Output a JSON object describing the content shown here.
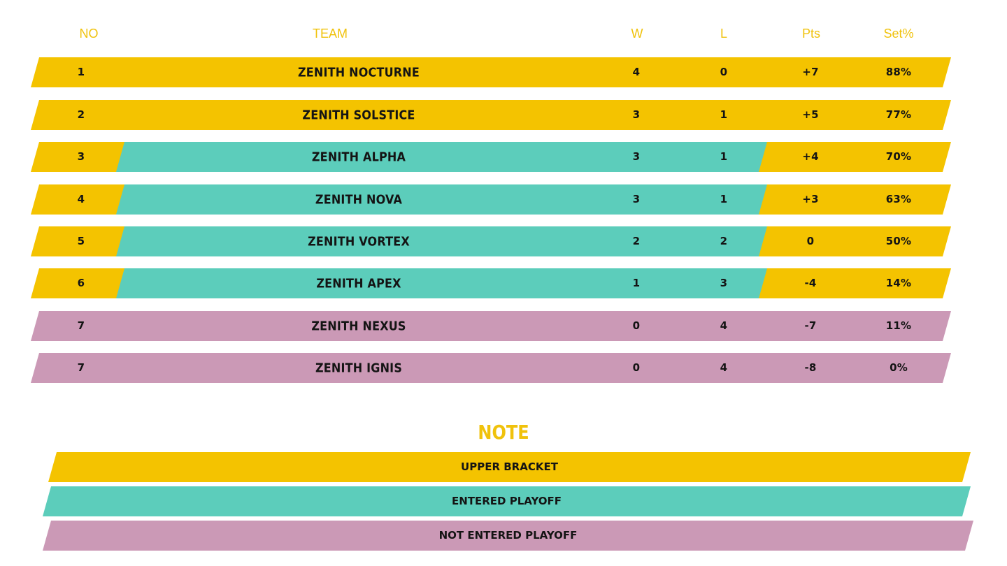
{
  "columns": {
    "no": "NO",
    "team": "TEAM",
    "w": "W",
    "l": "L",
    "pts": "Pts",
    "set_pct": "Set%"
  },
  "colors": {
    "upper_bracket": "#f4c300",
    "entered_playoff": "#5ccdbb",
    "not_entered_playoff": "#cb99b6",
    "header_text": "#f0c20c"
  },
  "standings": [
    {
      "no": "1",
      "team": "ZENITH NOCTURNE",
      "w": "4",
      "l": "0",
      "pts": "+7",
      "set_pct": "88%",
      "status": "upper_bracket"
    },
    {
      "no": "2",
      "team": "ZENITH SOLSTICE",
      "w": "3",
      "l": "1",
      "pts": "+5",
      "set_pct": "77%",
      "status": "upper_bracket"
    },
    {
      "no": "3",
      "team": "ZENITH ALPHA",
      "w": "3",
      "l": "1",
      "pts": "+4",
      "set_pct": "70%",
      "status": "entered_playoff"
    },
    {
      "no": "4",
      "team": "ZENITH NOVA",
      "w": "3",
      "l": "1",
      "pts": "+3",
      "set_pct": "63%",
      "status": "entered_playoff"
    },
    {
      "no": "5",
      "team": "ZENITH VORTEX",
      "w": "2",
      "l": "2",
      "pts": "0",
      "set_pct": "50%",
      "status": "entered_playoff"
    },
    {
      "no": "6",
      "team": "ZENITH APEX",
      "w": "1",
      "l": "3",
      "pts": "-4",
      "set_pct": "14%",
      "status": "entered_playoff"
    },
    {
      "no": "7",
      "team": "ZENITH NEXUS",
      "w": "0",
      "l": "4",
      "pts": "-7",
      "set_pct": "11%",
      "status": "not_entered_playoff"
    },
    {
      "no": "7",
      "team": "ZENITH IGNIS",
      "w": "0",
      "l": "4",
      "pts": "-8",
      "set_pct": "0%",
      "status": "not_entered_playoff"
    }
  ],
  "note": {
    "title": "NOTE",
    "legend": [
      {
        "label": "UPPER BRACKET",
        "status": "upper_bracket"
      },
      {
        "label": "ENTERED PLAYOFF",
        "status": "entered_playoff"
      },
      {
        "label": "NOT ENTERED PLAYOFF",
        "status": "not_entered_playoff"
      }
    ]
  }
}
